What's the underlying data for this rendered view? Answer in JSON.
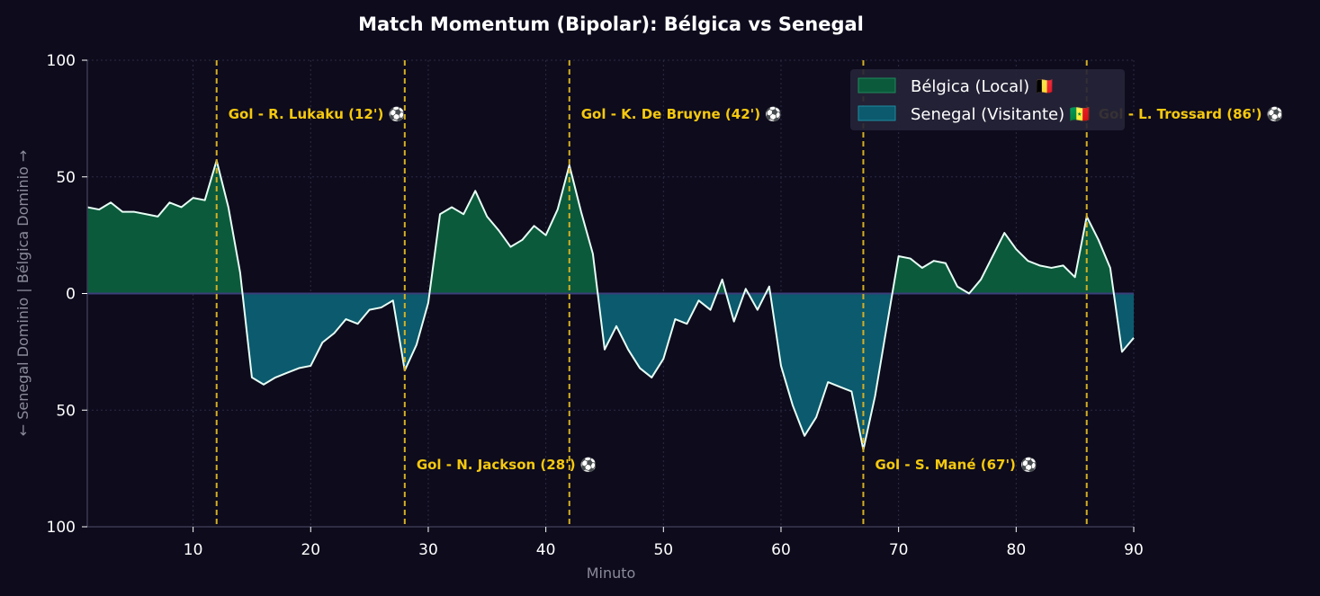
{
  "chart_data": {
    "type": "area",
    "title": "Match Momentum (Bipolar): Bélgica vs Senegal",
    "xlabel": "Minuto",
    "ylabel": "← Senegal Dominio | Bélgica Dominio →",
    "xlim": [
      1,
      90
    ],
    "ylim": [
      -100,
      100
    ],
    "xticks": [
      10,
      20,
      30,
      40,
      50,
      60,
      70,
      80,
      90
    ],
    "yticks": [
      {
        "value": 100,
        "label": "100"
      },
      {
        "value": 50,
        "label": "50"
      },
      {
        "value": 0,
        "label": "0"
      },
      {
        "value": -50,
        "label": "50"
      },
      {
        "value": -100,
        "label": "100"
      }
    ],
    "grid": true,
    "legend_position": "top-right",
    "series": [
      {
        "name": "Bélgica (Local) 🇧🇪",
        "color": "#0b5a3c",
        "role": "positive"
      },
      {
        "name": "Senegal (Visitante) 🇸🇳",
        "color": "#0b5a6e",
        "role": "negative"
      }
    ],
    "x": [
      1,
      2,
      3,
      4,
      5,
      6,
      7,
      8,
      9,
      10,
      11,
      12,
      13,
      14,
      15,
      16,
      17,
      18,
      19,
      20,
      21,
      22,
      23,
      24,
      25,
      26,
      27,
      28,
      29,
      30,
      31,
      32,
      33,
      34,
      35,
      36,
      37,
      38,
      39,
      40,
      41,
      42,
      43,
      44,
      45,
      46,
      47,
      48,
      49,
      50,
      51,
      52,
      53,
      54,
      55,
      56,
      57,
      58,
      59,
      60,
      61,
      62,
      63,
      64,
      65,
      66,
      67,
      68,
      69,
      70,
      71,
      72,
      73,
      74,
      75,
      76,
      77,
      78,
      79,
      80,
      81,
      82,
      83,
      84,
      85,
      86,
      87,
      88,
      89,
      90
    ],
    "values": [
      37,
      36,
      39,
      35,
      35,
      34,
      33,
      39,
      37,
      41,
      40,
      57,
      37,
      9,
      -36,
      -39,
      -36,
      -34,
      -32,
      -31,
      -21,
      -17,
      -11,
      -13,
      -7,
      -6,
      -3,
      -33,
      -22,
      -4,
      34,
      37,
      34,
      44,
      33,
      27,
      20,
      23,
      29,
      25,
      36,
      55,
      35,
      17,
      -24,
      -14,
      -24,
      -32,
      -36,
      -28,
      -11,
      -13,
      -3,
      -7,
      6,
      -12,
      2,
      -7,
      3,
      -31,
      -48,
      -61,
      -53,
      -38,
      -40,
      -42,
      -67,
      -44,
      -14,
      16,
      15,
      11,
      14,
      13,
      3,
      0,
      6,
      16,
      26,
      19,
      14,
      12,
      11,
      12,
      7,
      33,
      23,
      11,
      -25,
      -19
    ],
    "goals": [
      {
        "minute": 12,
        "label": "Gol - R. Lukaku (12') ⚽",
        "side": "top"
      },
      {
        "minute": 28,
        "label": "Gol - N. Jackson (28') ⚽",
        "side": "bottom"
      },
      {
        "minute": 42,
        "label": "Gol - K. De Bruyne (42') ⚽",
        "side": "top"
      },
      {
        "minute": 67,
        "label": "Gol - S. Mané (67') ⚽",
        "side": "bottom"
      },
      {
        "minute": 86,
        "label": "Gol - L. Trossard (86') ⚽",
        "side": "top"
      }
    ],
    "colors": {
      "background": "#0d0b1c",
      "line": "#e8fff5",
      "goal_line": "#d4af22",
      "goal_text": "#f6c90e",
      "zero_line": "#3b3f7a",
      "legend_bg": "#252437"
    }
  }
}
